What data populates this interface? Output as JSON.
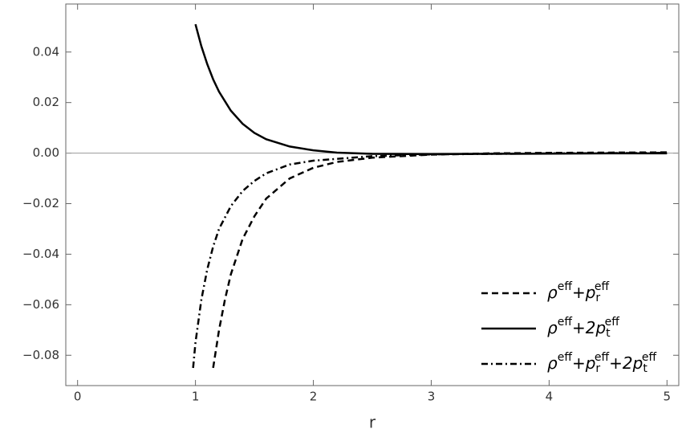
{
  "chart_data": {
    "type": "line",
    "xlabel": "r",
    "xlim": [
      -0.1,
      5.1
    ],
    "ylim": [
      -0.092,
      0.059
    ],
    "xticks": [
      0,
      1,
      2,
      3,
      4,
      5
    ],
    "yticks": [
      {
        "value": -0.08,
        "label": "−0.08"
      },
      {
        "value": -0.06,
        "label": "−0.06"
      },
      {
        "value": -0.04,
        "label": "−0.04"
      },
      {
        "value": -0.02,
        "label": "−0.02"
      },
      {
        "value": 0,
        "label": "0.00"
      },
      0.02,
      0.04
    ],
    "legend": "lower right",
    "series": [
      {
        "name": [
          {
            "text": "ρ"
          },
          {
            "text": "eff",
            "pos": "sup"
          },
          {
            "text": "+p"
          },
          {
            "text": "r",
            "pos": "sub"
          },
          {
            "text": "eff",
            "pos": "sup"
          }
        ],
        "color": "#000000",
        "style": "dashed",
        "x": [
          1.15,
          1.2,
          1.25,
          1.3,
          1.4,
          1.5,
          1.6,
          1.8,
          2,
          2.2,
          2.5,
          3,
          3.5,
          4,
          4.5,
          5
        ],
        "values": [
          -0.085,
          -0.07,
          -0.058,
          -0.048,
          -0.034,
          -0.025,
          -0.018,
          -0.01,
          -0.0058,
          -0.0035,
          -0.0018,
          -0.0006,
          -0.0001,
          0.0001,
          0.0002,
          0.0003
        ]
      },
      {
        "name": [
          {
            "text": "ρ"
          },
          {
            "text": "eff",
            "pos": "sup"
          },
          {
            "text": "+2p"
          },
          {
            "text": "t",
            "pos": "sub"
          },
          {
            "text": "eff",
            "pos": "sup"
          }
        ],
        "color": "#000000",
        "style": "solid",
        "x": [
          1,
          1.05,
          1.1,
          1.15,
          1.2,
          1.3,
          1.4,
          1.5,
          1.6,
          1.8,
          2,
          2.2,
          2.5,
          3,
          3.5,
          4,
          4.5,
          5
        ],
        "values": [
          0.051,
          0.0423,
          0.0352,
          0.0292,
          0.0243,
          0.0168,
          0.0116,
          0.008,
          0.0055,
          0.0026,
          0.0011,
          0.0002,
          -0.0003,
          -0.0004,
          -0.0003,
          -0.0002,
          -0.0001,
          -0.0001
        ]
      },
      {
        "name": [
          {
            "text": "ρ"
          },
          {
            "text": "eff",
            "pos": "sup"
          },
          {
            "text": "+p"
          },
          {
            "text": "r",
            "pos": "sub"
          },
          {
            "text": "eff",
            "pos": "sup"
          },
          {
            "text": "+2p"
          },
          {
            "text": "t",
            "pos": "sub"
          },
          {
            "text": "eff",
            "pos": "sup"
          }
        ],
        "color": "#000000",
        "style": "dashdot",
        "x": [
          0.98,
          1,
          1.05,
          1.1,
          1.15,
          1.2,
          1.3,
          1.4,
          1.5,
          1.6,
          1.8,
          2,
          2.5,
          3,
          4,
          5
        ],
        "values": [
          -0.085,
          -0.075,
          -0.058,
          -0.046,
          -0.037,
          -0.03,
          -0.021,
          -0.015,
          -0.011,
          -0.008,
          -0.0045,
          -0.003,
          -0.0012,
          -0.0005,
          -0.0001,
          0.0001
        ]
      }
    ]
  }
}
